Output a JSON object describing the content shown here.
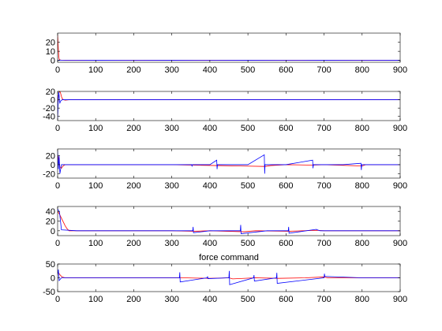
{
  "figure": {
    "background": "#ffffff",
    "axis_color": "#000000"
  },
  "chart_data": [
    {
      "type": "line",
      "title": "",
      "xlim": [
        0,
        900
      ],
      "ylim": [
        -2,
        30
      ],
      "xticks": [
        0,
        100,
        200,
        300,
        400,
        500,
        600,
        700,
        800,
        900
      ],
      "yticks": [
        0,
        10,
        20
      ],
      "series": [
        {
          "color": "#ff0000",
          "x": [
            0,
            1,
            2,
            3,
            4,
            6,
            9,
            14,
            20,
            30,
            60,
            120,
            200,
            300,
            400,
            500,
            600,
            700,
            800,
            900
          ],
          "y": [
            28,
            20,
            12,
            5,
            1.5,
            0.6,
            0.4,
            0.3,
            0.2,
            0.3,
            0.2,
            0.3,
            0.2,
            0.2,
            0.2,
            0.2,
            0.2,
            0.2,
            0.2,
            0.2
          ]
        },
        {
          "color": "#0000ff",
          "x": [
            0,
            2,
            5,
            10,
            50,
            100,
            200,
            300,
            400,
            500,
            600,
            700,
            800,
            900
          ],
          "y": [
            0.3,
            0.2,
            0.4,
            0.3,
            0.3,
            0.2,
            0.3,
            0.2,
            0.3,
            0.2,
            0.3,
            0.2,
            0.3,
            0.2
          ]
        }
      ]
    },
    {
      "type": "line",
      "title": "",
      "xlim": [
        0,
        900
      ],
      "ylim": [
        -50,
        20
      ],
      "xticks": [
        0,
        100,
        200,
        300,
        400,
        500,
        600,
        700,
        800,
        900
      ],
      "yticks": [
        -40,
        -20,
        0,
        20
      ],
      "series": [
        {
          "color": "#ff0000",
          "x": [
            0,
            2,
            4,
            6,
            8,
            10,
            12,
            15,
            20,
            30,
            60,
            200,
            400,
            600,
            900
          ],
          "y": [
            -5,
            10,
            18,
            20,
            15,
            8,
            3,
            0,
            -1,
            0,
            0,
            0,
            0,
            0,
            0
          ]
        },
        {
          "color": "#0000ff",
          "x": [
            0,
            1,
            2,
            3,
            4,
            5,
            6,
            8,
            12,
            20,
            60,
            200,
            400,
            600,
            900
          ],
          "y": [
            -45,
            -20,
            5,
            18,
            10,
            -5,
            -8,
            -3,
            0,
            0,
            0,
            0,
            0,
            0,
            0
          ]
        }
      ]
    },
    {
      "type": "line",
      "title": "",
      "xlim": [
        0,
        900
      ],
      "ylim": [
        -30,
        35
      ],
      "xticks": [
        0,
        100,
        200,
        300,
        400,
        500,
        600,
        700,
        800,
        900
      ],
      "yticks": [
        -20,
        0,
        20
      ],
      "series": [
        {
          "color": "#ff0000",
          "x": [
            0,
            2,
            4,
            6,
            10,
            14,
            20,
            40,
            100,
            200,
            300,
            350,
            420,
            480,
            545,
            560,
            600,
            670,
            700,
            800,
            810,
            900
          ],
          "y": [
            22,
            15,
            5,
            -5,
            -8,
            -3,
            0,
            0,
            0,
            0,
            0,
            -1,
            -2,
            -3,
            -4,
            -2,
            0,
            -1,
            0,
            -3,
            0,
            0
          ]
        },
        {
          "color": "#0000ff",
          "x": [
            0,
            2,
            4,
            6,
            10,
            20,
            100,
            200,
            300,
            352,
            353,
            354,
            400,
            418,
            419,
            420,
            500,
            543,
            544,
            545,
            600,
            670,
            671,
            672,
            750,
            797,
            798,
            799,
            900
          ],
          "y": [
            30,
            -10,
            20,
            -20,
            0,
            0,
            0,
            0,
            0,
            0,
            -3,
            0,
            0,
            10,
            -10,
            0,
            0,
            22,
            -20,
            0,
            0,
            10,
            -8,
            0,
            0,
            3,
            -12,
            0,
            0
          ]
        }
      ]
    },
    {
      "type": "line",
      "title": "",
      "xlim": [
        0,
        900
      ],
      "ylim": [
        -10,
        50
      ],
      "xticks": [
        0,
        100,
        200,
        300,
        400,
        500,
        600,
        700,
        800,
        900
      ],
      "yticks": [
        0,
        20,
        40
      ],
      "series": [
        {
          "color": "#ff0000",
          "x": [
            0,
            5,
            10,
            15,
            20,
            25,
            30,
            50,
            100,
            200,
            300,
            360,
            400,
            490,
            520,
            610,
            680,
            700,
            800,
            900
          ],
          "y": [
            40,
            34,
            26,
            18,
            10,
            4,
            0,
            0,
            0,
            0,
            0,
            -1,
            0,
            -2,
            0,
            -1,
            1,
            0,
            0,
            0
          ]
        },
        {
          "color": "#0000ff",
          "x": [
            0,
            2,
            5,
            10,
            50,
            100,
            200,
            300,
            355,
            356,
            357,
            400,
            480,
            481,
            482,
            550,
            606,
            607,
            608,
            680,
            682,
            690,
            800,
            900
          ],
          "y": [
            45,
            42,
            38,
            2,
            0,
            0,
            0,
            0,
            0,
            8,
            -4,
            0,
            0,
            12,
            -6,
            0,
            0,
            8,
            -5,
            3,
            2,
            0,
            0,
            0
          ]
        }
      ]
    },
    {
      "type": "line",
      "title": "force command",
      "xlim": [
        0,
        900
      ],
      "ylim": [
        -50,
        50
      ],
      "xticks": [
        0,
        100,
        200,
        300,
        400,
        500,
        600,
        700,
        800,
        900
      ],
      "yticks": [
        -50,
        0,
        50
      ],
      "series": [
        {
          "color": "#ff0000",
          "x": [
            0,
            4,
            8,
            12,
            20,
            30,
            100,
            200,
            300,
            330,
            400,
            450,
            460,
            520,
            580,
            650,
            700,
            710,
            800,
            900
          ],
          "y": [
            20,
            15,
            8,
            3,
            0,
            0,
            0,
            0,
            0,
            0,
            -2,
            0,
            -4,
            0,
            -2,
            0,
            3,
            0,
            0,
            0
          ]
        },
        {
          "color": "#0000ff",
          "x": [
            0,
            2,
            4,
            10,
            50,
            100,
            200,
            320,
            321,
            322,
            393,
            394,
            395,
            450,
            451,
            452,
            515,
            516,
            517,
            575,
            576,
            577,
            700,
            701,
            702,
            800,
            900
          ],
          "y": [
            10,
            30,
            -10,
            0,
            0,
            0,
            0,
            0,
            20,
            -15,
            0,
            5,
            -3,
            0,
            25,
            -25,
            0,
            10,
            -12,
            0,
            18,
            -20,
            0,
            15,
            5,
            0,
            0
          ]
        }
      ]
    }
  ]
}
